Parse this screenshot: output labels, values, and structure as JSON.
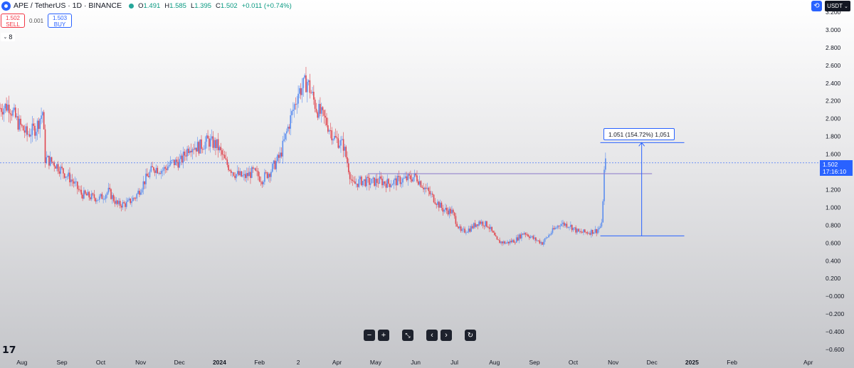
{
  "header": {
    "symbol": "APE / TetherUS · 1D · BINANCE",
    "open_label": "O",
    "open": "1.491",
    "high_label": "H",
    "high": "1.585",
    "low_label": "L",
    "low": "1.395",
    "close_label": "C",
    "close": "1.502",
    "change": "+0.011 (+0.74%)"
  },
  "trade": {
    "sell_price": "1.502",
    "sell_label": "SELL",
    "spread": "0.001",
    "buy_price": "1.503",
    "buy_label": "BUY"
  },
  "indicators_toggle": "8",
  "currency_button": "USDT",
  "price_tag": {
    "price": "1.502",
    "countdown": "17:16:10"
  },
  "measure_label": "1.051 (154.72%) 1,051",
  "colors": {
    "up": "#5b8def",
    "down": "#e0464f",
    "accent": "#2962ff"
  },
  "icons": [
    "tradingview-logo-icon",
    "zoom-out-icon",
    "zoom-in-icon",
    "fit-icon",
    "scroll-left-icon",
    "scroll-right-icon",
    "reset-icon",
    "refresh-icon"
  ],
  "chart_data": {
    "type": "candlestick",
    "y_ticks": [
      "3.200",
      "3.000",
      "2.800",
      "2.600",
      "2.400",
      "2.200",
      "2.000",
      "1.800",
      "1.600",
      "1.400",
      "1.200",
      "1.000",
      "0.800",
      "0.600",
      "0.400",
      "0.200",
      "−0.000",
      "−0.200",
      "−0.400",
      "−0.600"
    ],
    "y_tick_values": [
      3.2,
      3.0,
      2.8,
      2.6,
      2.4,
      2.2,
      2.0,
      1.8,
      1.6,
      1.4,
      1.2,
      1.0,
      0.8,
      0.6,
      0.4,
      0.2,
      0.0,
      -0.2,
      -0.4,
      -0.6
    ],
    "x_ticks": [
      {
        "label": "Aug",
        "date": "2023-08-01"
      },
      {
        "label": "Sep",
        "date": "2023-09-01"
      },
      {
        "label": "Oct",
        "date": "2023-10-01"
      },
      {
        "label": "Nov",
        "date": "2023-11-01"
      },
      {
        "label": "Dec",
        "date": "2023-12-01"
      },
      {
        "label": "2024",
        "date": "2024-01-01",
        "bold": true
      },
      {
        "label": "Feb",
        "date": "2024-02-01"
      },
      {
        "label": "2",
        "date": "2024-03-02"
      },
      {
        "label": "Apr",
        "date": "2024-04-01"
      },
      {
        "label": "May",
        "date": "2024-05-01"
      },
      {
        "label": "Jun",
        "date": "2024-06-01"
      },
      {
        "label": "Jul",
        "date": "2024-07-01"
      },
      {
        "label": "Aug",
        "date": "2024-08-01"
      },
      {
        "label": "Sep",
        "date": "2024-09-01"
      },
      {
        "label": "Oct",
        "date": "2024-10-01"
      },
      {
        "label": "Nov",
        "date": "2024-11-01"
      },
      {
        "label": "Dec",
        "date": "2024-12-01"
      },
      {
        "label": "2025",
        "date": "2025-01-01",
        "bold": true
      },
      {
        "label": "Feb",
        "date": "2025-02-01"
      },
      {
        "label": "Apr",
        "date": "2025-04-01"
      }
    ],
    "x_range": [
      "2023-07-15",
      "2025-04-10"
    ],
    "y_range": [
      -0.7,
      3.25
    ],
    "closes": [
      {
        "date": "2023-07-15",
        "close": 2.12
      },
      {
        "date": "2023-07-22",
        "close": 2.15
      },
      {
        "date": "2023-07-29",
        "close": 1.95
      },
      {
        "date": "2023-08-05",
        "close": 1.82
      },
      {
        "date": "2023-08-12",
        "close": 1.9
      },
      {
        "date": "2023-08-17",
        "close": 2.08
      },
      {
        "date": "2023-08-19",
        "close": 1.55
      },
      {
        "date": "2023-08-26",
        "close": 1.5
      },
      {
        "date": "2023-09-02",
        "close": 1.4
      },
      {
        "date": "2023-09-09",
        "close": 1.3
      },
      {
        "date": "2023-09-16",
        "close": 1.15
      },
      {
        "date": "2023-09-23",
        "close": 1.12
      },
      {
        "date": "2023-09-30",
        "close": 1.1
      },
      {
        "date": "2023-10-07",
        "close": 1.18
      },
      {
        "date": "2023-10-14",
        "close": 1.03
      },
      {
        "date": "2023-10-21",
        "close": 1.04
      },
      {
        "date": "2023-10-28",
        "close": 1.12
      },
      {
        "date": "2023-11-04",
        "close": 1.3
      },
      {
        "date": "2023-11-11",
        "close": 1.45
      },
      {
        "date": "2023-11-18",
        "close": 1.42
      },
      {
        "date": "2023-11-25",
        "close": 1.5
      },
      {
        "date": "2023-12-02",
        "close": 1.52
      },
      {
        "date": "2023-12-09",
        "close": 1.7
      },
      {
        "date": "2023-12-16",
        "close": 1.68
      },
      {
        "date": "2023-12-23",
        "close": 1.75
      },
      {
        "date": "2023-12-30",
        "close": 1.7
      },
      {
        "date": "2024-01-06",
        "close": 1.5
      },
      {
        "date": "2024-01-13",
        "close": 1.38
      },
      {
        "date": "2024-01-20",
        "close": 1.34
      },
      {
        "date": "2024-01-27",
        "close": 1.4
      },
      {
        "date": "2024-02-03",
        "close": 1.32
      },
      {
        "date": "2024-02-10",
        "close": 1.42
      },
      {
        "date": "2024-02-17",
        "close": 1.58
      },
      {
        "date": "2024-02-24",
        "close": 1.95
      },
      {
        "date": "2024-03-02",
        "close": 2.3
      },
      {
        "date": "2024-03-09",
        "close": 2.42
      },
      {
        "date": "2024-03-16",
        "close": 2.12
      },
      {
        "date": "2024-03-23",
        "close": 1.98
      },
      {
        "date": "2024-03-30",
        "close": 1.78
      },
      {
        "date": "2024-04-06",
        "close": 1.7
      },
      {
        "date": "2024-04-13",
        "close": 1.25
      },
      {
        "date": "2024-04-20",
        "close": 1.3
      },
      {
        "date": "2024-04-27",
        "close": 1.28
      },
      {
        "date": "2024-05-04",
        "close": 1.3
      },
      {
        "date": "2024-05-11",
        "close": 1.27
      },
      {
        "date": "2024-05-18",
        "close": 1.3
      },
      {
        "date": "2024-05-25",
        "close": 1.32
      },
      {
        "date": "2024-06-01",
        "close": 1.35
      },
      {
        "date": "2024-06-08",
        "close": 1.22
      },
      {
        "date": "2024-06-15",
        "close": 1.1
      },
      {
        "date": "2024-06-22",
        "close": 0.98
      },
      {
        "date": "2024-06-29",
        "close": 0.95
      },
      {
        "date": "2024-07-06",
        "close": 0.72
      },
      {
        "date": "2024-07-13",
        "close": 0.76
      },
      {
        "date": "2024-07-20",
        "close": 0.84
      },
      {
        "date": "2024-07-27",
        "close": 0.8
      },
      {
        "date": "2024-08-03",
        "close": 0.62
      },
      {
        "date": "2024-08-10",
        "close": 0.6
      },
      {
        "date": "2024-08-17",
        "close": 0.63
      },
      {
        "date": "2024-08-24",
        "close": 0.72
      },
      {
        "date": "2024-08-31",
        "close": 0.65
      },
      {
        "date": "2024-09-07",
        "close": 0.6
      },
      {
        "date": "2024-09-14",
        "close": 0.72
      },
      {
        "date": "2024-09-21",
        "close": 0.82
      },
      {
        "date": "2024-09-28",
        "close": 0.8
      },
      {
        "date": "2024-10-05",
        "close": 0.72
      },
      {
        "date": "2024-10-12",
        "close": 0.72
      },
      {
        "date": "2024-10-19",
        "close": 0.74
      },
      {
        "date": "2024-10-23",
        "close": 0.8
      },
      {
        "date": "2024-10-25",
        "close": 1.4
      },
      {
        "date": "2024-10-26",
        "close": 1.502
      }
    ],
    "range_high": 1.73,
    "range_low": 0.68,
    "horizontal_level": 1.38,
    "current_price": 1.502
  }
}
